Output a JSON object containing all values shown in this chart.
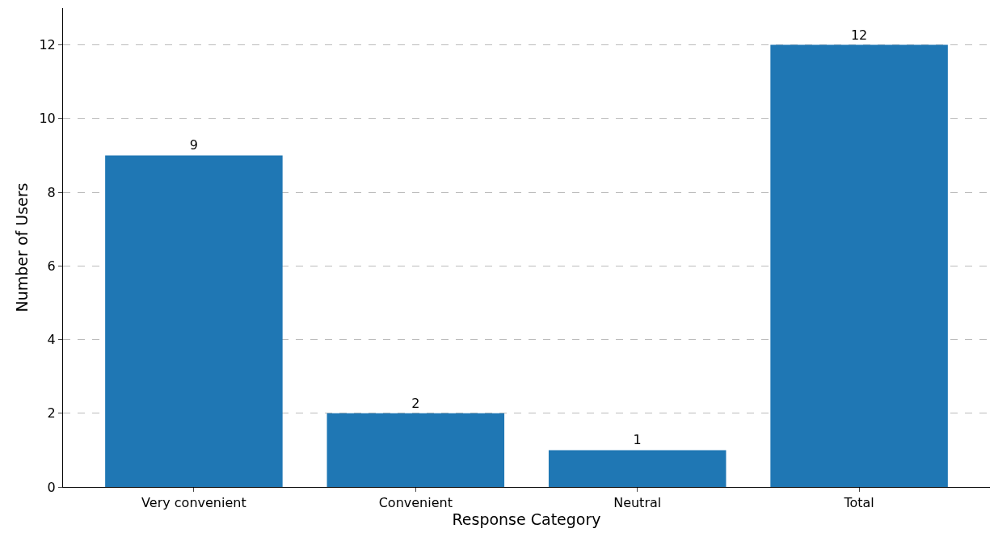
{
  "chart_data": {
    "type": "bar",
    "xlabel": "Response Category",
    "ylabel": "Number of Users",
    "categories": [
      "Very convenient",
      "Convenient",
      "Neutral",
      "Total"
    ],
    "values": [
      9,
      2,
      1,
      12
    ],
    "color": "#1f77b4",
    "ylim": [
      0,
      13
    ],
    "yticks": [
      0,
      2,
      4,
      6,
      8,
      10,
      12
    ],
    "grid": "y",
    "data_labels": true
  }
}
